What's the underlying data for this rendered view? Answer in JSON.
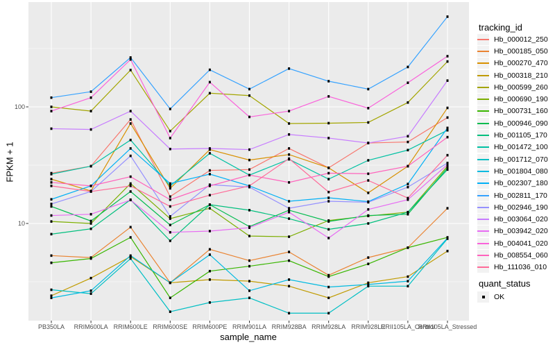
{
  "figure": {
    "background": "#FFFFFF",
    "panel_background": "#EBEBEB",
    "gridline_color": "#FFFFFF",
    "tick_mark_color": "#333333",
    "tick_label_color": "#4D4D4D",
    "point_color": "#000000"
  },
  "y_axis": {
    "title": "FPKM + 1",
    "ticks": [
      {
        "label": "100",
        "value": 100
      },
      {
        "label": "10",
        "value": 10
      }
    ]
  },
  "x_axis": {
    "title": "sample_name"
  },
  "legend": {
    "title": "tracking_id",
    "quant": {
      "title": "quant_status",
      "items": [
        {
          "label": "OK",
          "marker": "black-square"
        }
      ]
    }
  },
  "chart_data": {
    "type": "line",
    "title": "",
    "xlabel": "sample_name",
    "ylabel": "FPKM + 1",
    "y_scale": "log10",
    "ylim": [
      1.4,
      720
    ],
    "y_major_ticks": [
      10,
      100
    ],
    "y_minor_gridlines": [
      3.162,
      31.62,
      316.2
    ],
    "legend_title": "tracking_id",
    "quant_status": "OK",
    "marker": "small-black-square",
    "categories": [
      "PB350LA",
      "RRIM600LA",
      "RRIM600LE",
      "RRIM600SE",
      "RRIM600PE",
      "RRIM901LA",
      "RRIM928BA",
      "RRIM928LA",
      "RRIM928LE",
      "RRII105LA_Control",
      "RRII105LA_Stressed"
    ],
    "series": [
      {
        "name": "Hb_000012_250",
        "color": "#F8766D",
        "values": [
          27,
          31,
          78,
          17,
          28.5,
          29,
          44,
          30,
          49,
          50,
          81
        ]
      },
      {
        "name": "Hb_000185_050",
        "color": "#EA8331",
        "values": [
          5.3,
          5.1,
          9.3,
          3.1,
          6.0,
          4.8,
          5.7,
          3.6,
          5.1,
          6.2,
          13.5
        ]
      },
      {
        "name": "Hb_000270_470",
        "color": "#D89000",
        "values": [
          24,
          19,
          72,
          20,
          43,
          35,
          39,
          30,
          18.3,
          31,
          98
        ]
      },
      {
        "name": "Hb_000318_210",
        "color": "#C09B00",
        "values": [
          2.4,
          3.4,
          5.2,
          3.1,
          3.3,
          3.2,
          2.9,
          2.3,
          3.1,
          3.5,
          5.8
        ]
      },
      {
        "name": "Hb_000599_260",
        "color": "#A3A500",
        "values": [
          100,
          92,
          207,
          62,
          131,
          125,
          72,
          72.5,
          73.5,
          109,
          245
        ]
      },
      {
        "name": "Hb_000690_190",
        "color": "#7CAE00",
        "values": [
          10.4,
          10,
          22,
          11,
          13.5,
          7.8,
          7.7,
          10.6,
          11.6,
          12.5,
          31
        ]
      },
      {
        "name": "Hb_000731_160",
        "color": "#39B600",
        "values": [
          4.6,
          5.0,
          7.6,
          2.3,
          3.9,
          4.3,
          4.8,
          3.5,
          4.5,
          6.2,
          7.6
        ]
      },
      {
        "name": "Hb_000946_090",
        "color": "#00BB4E",
        "values": [
          14,
          10.5,
          18.8,
          9.7,
          14.5,
          9.4,
          13,
          10.4,
          11.7,
          12,
          30
        ]
      },
      {
        "name": "Hb_001105_170",
        "color": "#00BF7D",
        "values": [
          8.1,
          9.0,
          16,
          7.1,
          14.5,
          13,
          11,
          8.9,
          10,
          12.5,
          29
        ]
      },
      {
        "name": "Hb_001472_100",
        "color": "#00C1A3",
        "values": [
          26.5,
          31,
          52,
          21,
          40,
          26,
          35.5,
          24,
          34.8,
          42.6,
          63
        ]
      },
      {
        "name": "Hb_001712_070",
        "color": "#00BFC4",
        "values": [
          2.7,
          2.5,
          5.0,
          1.75,
          2.1,
          2.3,
          1.7,
          1.7,
          2.9,
          2.9,
          7.4
        ]
      },
      {
        "name": "Hb_001804_080",
        "color": "#00BAE0",
        "values": [
          2.3,
          2.65,
          5.3,
          3.1,
          5.4,
          2.65,
          3.3,
          2.85,
          3.0,
          3.2,
          7.5
        ]
      },
      {
        "name": "Hb_002307_180",
        "color": "#00B0F6",
        "values": [
          16.1,
          21,
          44,
          22,
          26.5,
          21,
          15.5,
          16.6,
          15.4,
          21.8,
          66
        ]
      },
      {
        "name": "Hb_002811_170",
        "color": "#35A2FF",
        "values": [
          120,
          135,
          265,
          96,
          208,
          142,
          213,
          166,
          142,
          220,
          594
        ]
      },
      {
        "name": "Hb_002946_190",
        "color": "#9590FF",
        "values": [
          14.7,
          18.8,
          38,
          11.5,
          21.5,
          20.5,
          13.5,
          15.5,
          15.2,
          20.5,
          33
        ]
      },
      {
        "name": "Hb_003064_020",
        "color": "#C77CFF",
        "values": [
          65,
          64,
          92,
          43.5,
          44,
          43,
          58,
          54,
          49,
          56,
          168
        ]
      },
      {
        "name": "Hb_003942_020",
        "color": "#E76BF3",
        "values": [
          11.7,
          12,
          15.9,
          8.4,
          8.6,
          9.2,
          12.5,
          7.5,
          13.2,
          16,
          32
        ]
      },
      {
        "name": "Hb_004041_020",
        "color": "#FA62DB",
        "values": [
          92,
          120,
          255,
          54,
          163,
          82,
          92,
          123,
          97.5,
          161,
          272
        ]
      },
      {
        "name": "Hb_008554_060",
        "color": "#FF62BC",
        "values": [
          22.5,
          21,
          25.2,
          16,
          21,
          26,
          22.5,
          27,
          26.7,
          31,
          55
        ]
      },
      {
        "name": "Hb_111036_010",
        "color": "#FF6A98",
        "values": [
          21,
          18.8,
          21,
          14,
          17.5,
          21,
          36,
          18.6,
          23.4,
          16.5,
          38.5
        ]
      }
    ]
  }
}
